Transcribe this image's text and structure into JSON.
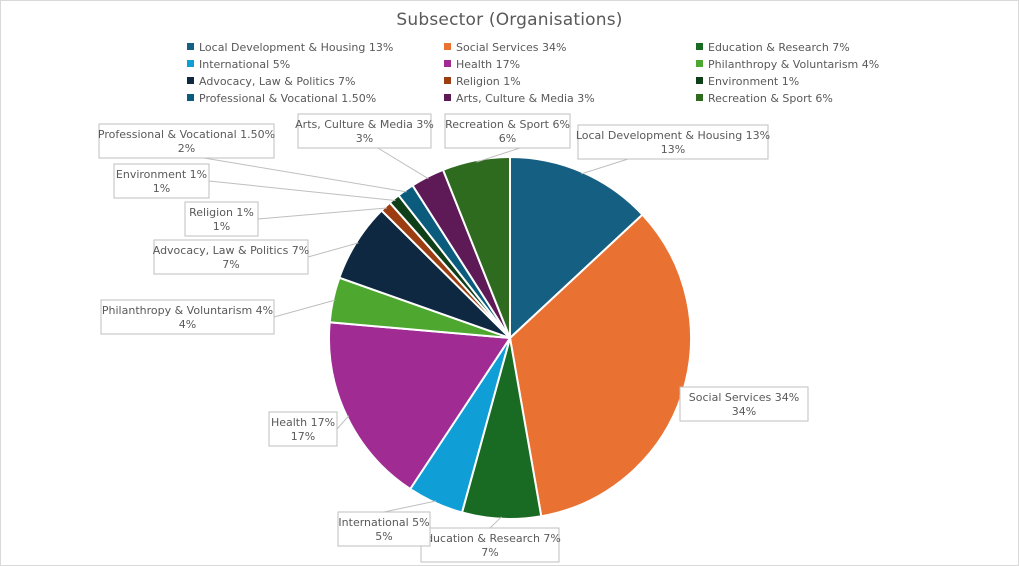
{
  "chart_data": {
    "type": "pie",
    "title": "Subsector (Organisations)",
    "legend_position": "top",
    "start_angle": "12 o'clock, clockwise",
    "slices": [
      {
        "name": "Local Development & Housing 13%",
        "value": 13,
        "data_label": "13%",
        "color": "#156082"
      },
      {
        "name": "Social Services 34%",
        "value": 34,
        "data_label": "34%",
        "color": "#E97132"
      },
      {
        "name": "Education & Research 7%",
        "value": 7,
        "data_label": "7%",
        "color": "#196B24"
      },
      {
        "name": "International 5%",
        "value": 5,
        "data_label": "5%",
        "color": "#0F9ED5"
      },
      {
        "name": "Health 17%",
        "value": 17,
        "data_label": "17%",
        "color": "#A02B93"
      },
      {
        "name": "Philanthropy & Voluntarism  4%",
        "value": 4,
        "data_label": "4%",
        "color": "#4EA72E"
      },
      {
        "name": "Advocacy, Law & Politics 7%",
        "value": 7,
        "data_label": "7%",
        "color": "#0E2841"
      },
      {
        "name": "Religion 1%",
        "value": 1,
        "data_label": "1%",
        "color": "#9B3D10"
      },
      {
        "name": "Environment 1%",
        "value": 1,
        "data_label": "1%",
        "color": "#0E3F18"
      },
      {
        "name": "Professional & Vocational 1.50%",
        "value": 1.5,
        "data_label": "2%",
        "color": "#0B5C7C"
      },
      {
        "name": "Arts, Culture & Media 3%",
        "value": 3,
        "data_label": "3%",
        "color": "#5E1A57"
      },
      {
        "name": "Recreation & Sport 6%",
        "value": 6,
        "data_label": "6%",
        "color": "#2E6B1E"
      }
    ]
  }
}
